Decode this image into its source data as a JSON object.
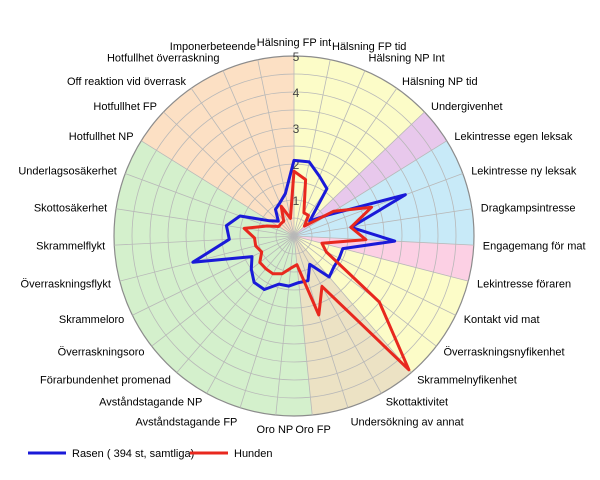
{
  "chart_data": {
    "type": "radar",
    "rmax": 5,
    "ring_labels": [
      "1",
      "2",
      "3",
      "4",
      "5"
    ],
    "axes": [
      "Hälsning FP int",
      "Hälsning FP tid",
      "Hälsning NP Int",
      "Hälsning NP tid",
      "Undergivenhet",
      "Lekintresse egen leksak",
      "Lekintresse ny leksak",
      "Dragkampsintresse",
      "Engagemang för mat",
      "Lekintresse föraren",
      "Kontakt vid mat",
      "Överraskningsnyfikenhet",
      "Skrammelnyfikenhet",
      "Skottaktivitet",
      "Undersökning av annat",
      "Oro FP",
      "Oro NP",
      "Avståndstagande FP",
      "Avståndstagande NP",
      "Förarbundenhet promenad",
      "Överraskningsoro",
      "Skrammeloro",
      "Överraskningsflykt",
      "Skrammelflykt",
      "Skottosäkerhet",
      "Underlagsosäkerhet",
      "Hotfullhet NP",
      "Hotfullhet FP",
      "Off reaktion vid överrask",
      "Hotfullhet överraskning",
      "Imponerbeteende"
    ],
    "sectors": [
      {
        "from": 0,
        "to": 4,
        "color": "#fcfcc8"
      },
      {
        "from": 4,
        "to": 5,
        "color": "#e8c8ec"
      },
      {
        "from": 5,
        "to": 8,
        "color": "#c8eaf8"
      },
      {
        "from": 8,
        "to": 9,
        "color": "#fcd0e4"
      },
      {
        "from": 9,
        "to": 12,
        "color": "#fcfcc8"
      },
      {
        "from": 12,
        "to": 15,
        "color": "#ece2c4"
      },
      {
        "from": 15,
        "to": 26,
        "color": "#d4f0cc"
      },
      {
        "from": 26,
        "to": 31,
        "color": "#fce0c4"
      }
    ],
    "series": [
      {
        "name": "Rasen ( 394 st, samtliga)",
        "color": "#1a1ad8",
        "values": [
          2.1,
          2.1,
          1.8,
          1.6,
          0.6,
          1.1,
          3.3,
          1.6,
          2.8,
          1.4,
          1.4,
          1.4,
          1.5,
          0.9,
          1.3,
          1.3,
          1.4,
          1.4,
          1.7,
          1.7,
          1.5,
          1.3,
          2.9,
          1.8,
          1.9,
          1.6,
          0.8,
          0.6,
          0.9,
          1.0,
          1.2
        ]
      },
      {
        "name": "Hunden",
        "color": "#e8281e",
        "values": [
          1.8,
          1.6,
          0.7,
          0.7,
          0.4,
          1.3,
          2.3,
          1.6,
          2.0,
          0.8,
          1.0,
          3.0,
          4.9,
          1.6,
          2.3,
          0.8,
          0.9,
          1.1,
          1.2,
          1.2,
          1.2,
          1.0,
          1.1,
          1.1,
          1.4,
          0.8,
          0.5,
          0.5,
          0.5,
          0.9,
          0.5
        ]
      }
    ],
    "legend_placement": "bottom-left"
  }
}
